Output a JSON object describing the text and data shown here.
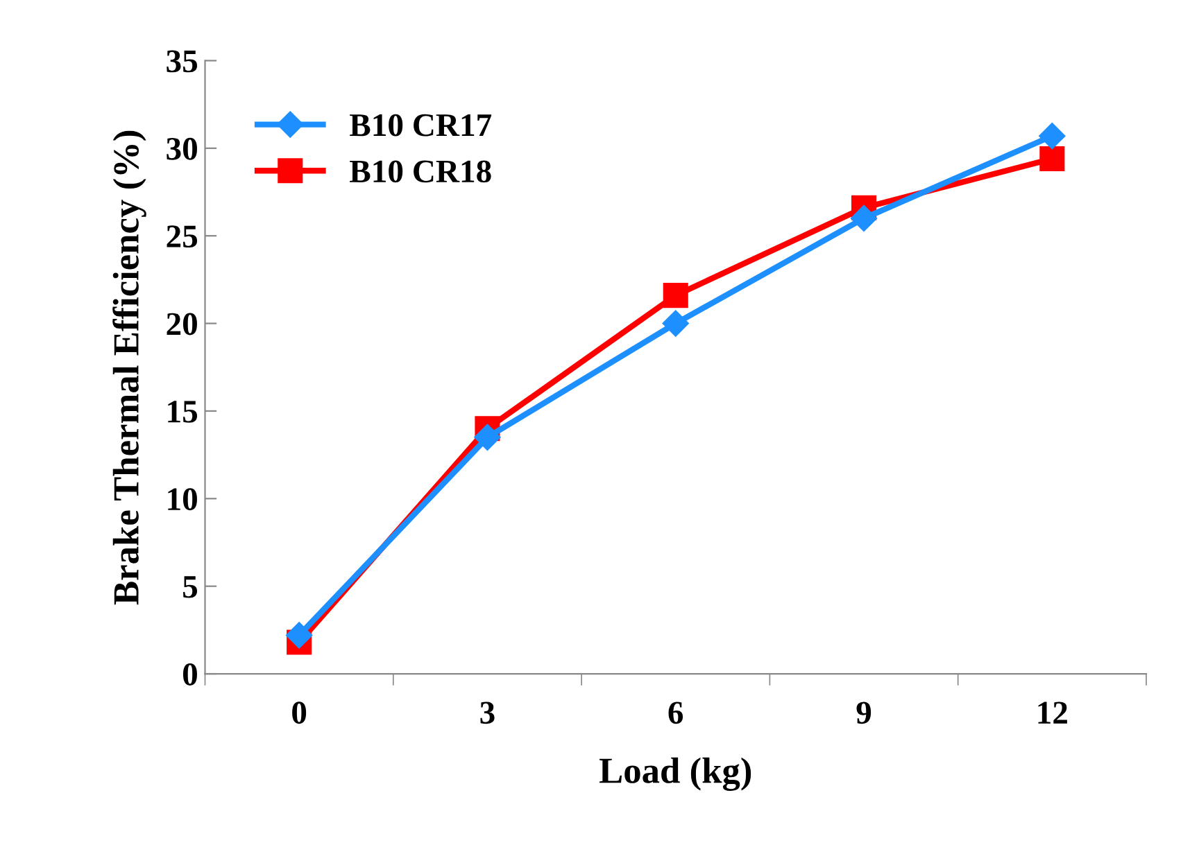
{
  "chart_data": {
    "type": "line",
    "xlabel": "Load (kg)",
    "ylabel": "Brake Thermal Efficiency (%)",
    "categories": [
      "0",
      "3",
      "6",
      "9",
      "12"
    ],
    "series": [
      {
        "name": "B10 CR17",
        "color": "#1e8fff",
        "marker": "diamond",
        "values": [
          2.2,
          13.5,
          20,
          26,
          30.7
        ]
      },
      {
        "name": "B10 CR18",
        "color": "#ff0000",
        "marker": "square",
        "values": [
          1.8,
          14,
          21.6,
          26.6,
          29.4
        ]
      }
    ],
    "ylim": [
      0,
      35
    ],
    "yticks": [
      0,
      5,
      10,
      15,
      20,
      25,
      30,
      35
    ],
    "grid": false,
    "legend": "top left",
    "line_style": "solid"
  }
}
